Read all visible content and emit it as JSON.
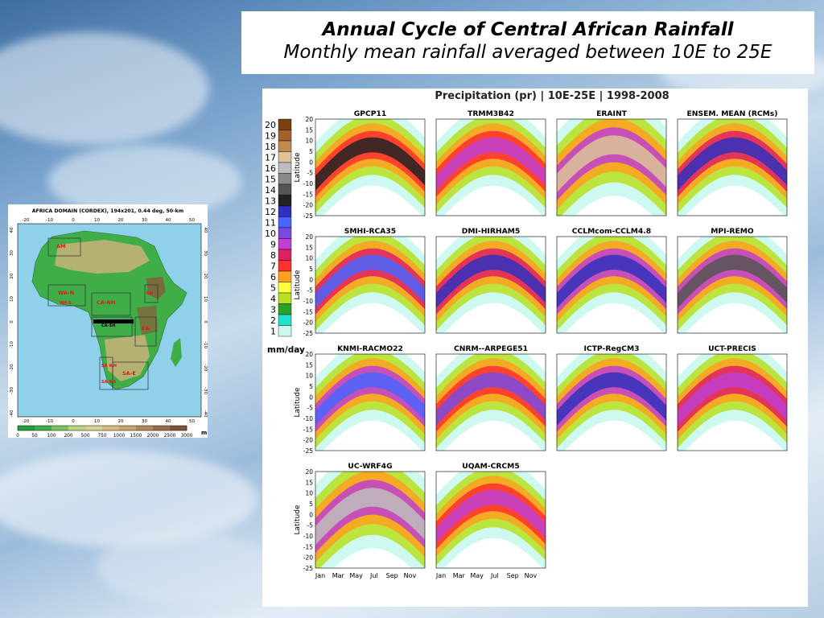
{
  "slide": {
    "title": "Annual Cycle of Central African Rainfall",
    "subtitle": "Monthly mean rainfall averaged between 10E to 25E"
  },
  "map": {
    "title": "AFRICA DOMAIN (CORDEX), 194x201, 0.44 deg, 50-km",
    "lon_ticks": [
      "-20",
      "-10",
      "0",
      "10",
      "20",
      "30",
      "40",
      "50"
    ],
    "lat_ticks": [
      "40",
      "30",
      "20",
      "10",
      "0",
      "-10",
      "-20",
      "-30",
      "-40"
    ],
    "regions": [
      "AM",
      "WA-N",
      "WA-S",
      "CA-NH",
      "CA-SH",
      "EH",
      "EA",
      "SA WH",
      "SA WS",
      "SA-E"
    ],
    "elevation_ticks": [
      "0",
      "50",
      "100",
      "200",
      "500",
      "750",
      "1000",
      "1500",
      "2000",
      "2500",
      "3000"
    ],
    "elevation_unit": "m",
    "colors": {
      "ocean": "#8fd0ea",
      "lowland": "#3fae49",
      "upland": "#c9b27a",
      "highland": "#8a5a3a",
      "region_label": "#e01818"
    }
  },
  "chart_data": {
    "type": "heatmap",
    "title": "Precipitation (pr) | 10E-25E | 1998-2008",
    "ylabel": "Latitude",
    "y_ticks": [
      "20",
      "15",
      "10",
      "5",
      "0",
      "-5",
      "-10",
      "-15",
      "-20",
      "-25"
    ],
    "x_ticks": [
      "Jan",
      "Mar",
      "May",
      "Jul",
      "Sep",
      "Nov"
    ],
    "colorbar": {
      "unit": "mm/day",
      "levels": [
        "20",
        "19",
        "18",
        "17",
        "16",
        "15",
        "14",
        "13",
        "12",
        "11",
        "10",
        "9",
        "8",
        "7",
        "6",
        "5",
        "4",
        "3",
        "2",
        "1"
      ],
      "colors": [
        "#7a3f12",
        "#a0622a",
        "#c28a4e",
        "#dcc39a",
        "#bdbdbd",
        "#8a8a8a",
        "#555555",
        "#222222",
        "#3030c0",
        "#4a64ff",
        "#7a4ae0",
        "#c040d0",
        "#e02060",
        "#ff3030",
        "#ffa020",
        "#ffff40",
        "#b8e020",
        "#2ca02c",
        "#20e0d0",
        "#c8f8f0"
      ]
    },
    "panels": [
      {
        "name": "GPCP11",
        "peak": 13,
        "band": "narrow-yellow-red"
      },
      {
        "name": "TRMM3B42",
        "peak": 9,
        "band": "narrow-yellow-red"
      },
      {
        "name": "ERAINT",
        "peak": 17,
        "band": "wide-purple"
      },
      {
        "name": "ENSEM. MEAN (RCMs)",
        "peak": 12,
        "band": "red-orange"
      },
      {
        "name": "SMHI-RCA35",
        "peak": 11,
        "band": "red-orange"
      },
      {
        "name": "DMI-HIRHAM5",
        "peak": 12,
        "band": "red-orange"
      },
      {
        "name": "CCLMcom-CCLM4.8",
        "peak": 12,
        "band": "red-purple"
      },
      {
        "name": "MPI-REMO",
        "peak": 14,
        "band": "purple"
      },
      {
        "name": "KNMI-RACMO22",
        "peak": 11,
        "band": "red-purple"
      },
      {
        "name": "CNRM--ARPEGE51",
        "peak": 10,
        "band": "yellow-red"
      },
      {
        "name": "ICTP-RegCM3",
        "peak": 12,
        "band": "red-purple"
      },
      {
        "name": "UCT-PRECIS",
        "peak": 9,
        "band": "red-yellow"
      },
      {
        "name": "UC-WRF4G",
        "peak": 16,
        "band": "wide-blue-purple"
      },
      {
        "name": "UQAM-CRCM5",
        "peak": 9,
        "band": "yellow-red"
      }
    ]
  }
}
